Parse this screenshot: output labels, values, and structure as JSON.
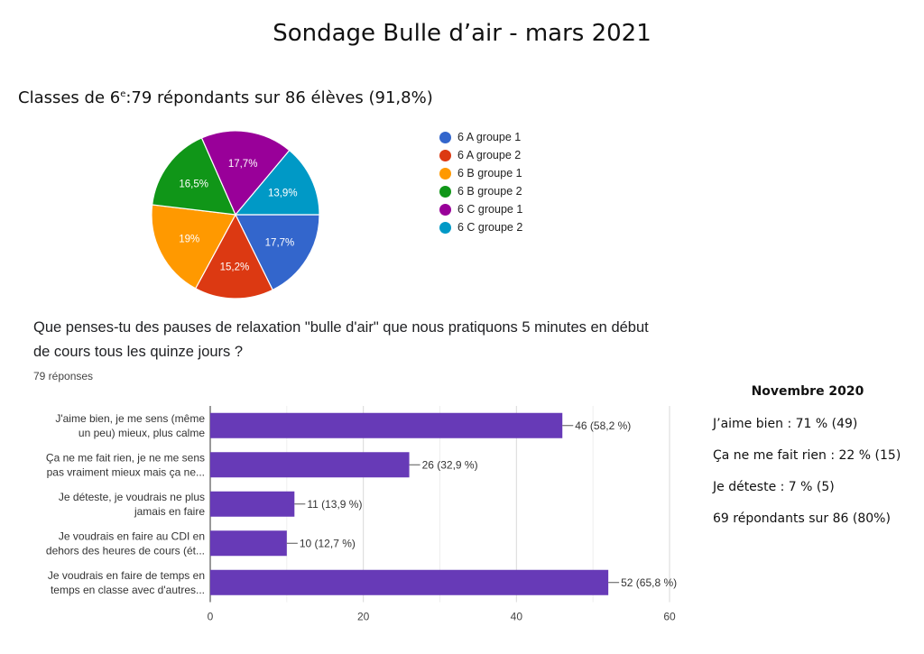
{
  "title": "Sondage Bulle d’air - mars 2021",
  "pie_heading": {
    "prefix": "Classes de 6",
    "sup": "e",
    "suffix": ":79 répondants sur 86 élèves (91,8%)"
  },
  "question": {
    "line1": "Que penses-tu des pauses de relaxation \"bulle d'air\" que nous pratiquons 5 minutes en début",
    "line2": "de cours tous les quinze jours ?",
    "responses": "79 réponses"
  },
  "november": {
    "title": "Novembre 2020",
    "lines": [
      "J’aime bien : 71 % (49)",
      "Ça ne me fait rien : 22 % (15)",
      "Je déteste : 7 % (5)",
      "69 répondants sur 86 (80%)"
    ]
  },
  "chart_data": [
    {
      "type": "pie",
      "title": "",
      "slices": [
        {
          "label": "6 A groupe 1",
          "value": 17.7,
          "pct_label": "17,7%",
          "color": "#3366cc"
        },
        {
          "label": "6 A groupe 2",
          "value": 15.2,
          "pct_label": "15,2%",
          "color": "#dc3912"
        },
        {
          "label": "6 B groupe 1",
          "value": 19.0,
          "pct_label": "19%",
          "color": "#ff9900"
        },
        {
          "label": "6 B groupe 2",
          "value": 16.5,
          "pct_label": "16,5%",
          "color": "#109618"
        },
        {
          "label": "6 C groupe 1",
          "value": 17.7,
          "pct_label": "17,7%",
          "color": "#990099"
        },
        {
          "label": "6 C groupe 2",
          "value": 13.9,
          "pct_label": "13,9%",
          "color": "#0099c6"
        }
      ],
      "legend_position": "right"
    },
    {
      "type": "bar",
      "orientation": "horizontal",
      "categories": [
        [
          "J'aime bien, je me sens (même",
          "un peu) mieux, plus calme"
        ],
        [
          "Ça ne me fait rien, je ne me sens",
          "pas vraiment mieux mais ça ne..."
        ],
        [
          "Je déteste, je voudrais ne plus",
          "jamais en faire"
        ],
        [
          "Je voudrais en faire au CDI en",
          "dehors des heures de cours (ét..."
        ],
        [
          "Je voudrais en faire de temps en",
          "temps en classe avec d'autres..."
        ]
      ],
      "values": [
        46,
        26,
        11,
        10,
        52
      ],
      "value_labels": [
        "46 (58,2 %)",
        "26 (32,9 %)",
        "11 (13,9 %)",
        "10 (12,7 %)",
        "52 (65,8 %)"
      ],
      "color": "#673ab7",
      "xlim": [
        0,
        60
      ],
      "xticks": [
        0,
        20,
        40,
        60
      ],
      "grid": true
    }
  ]
}
